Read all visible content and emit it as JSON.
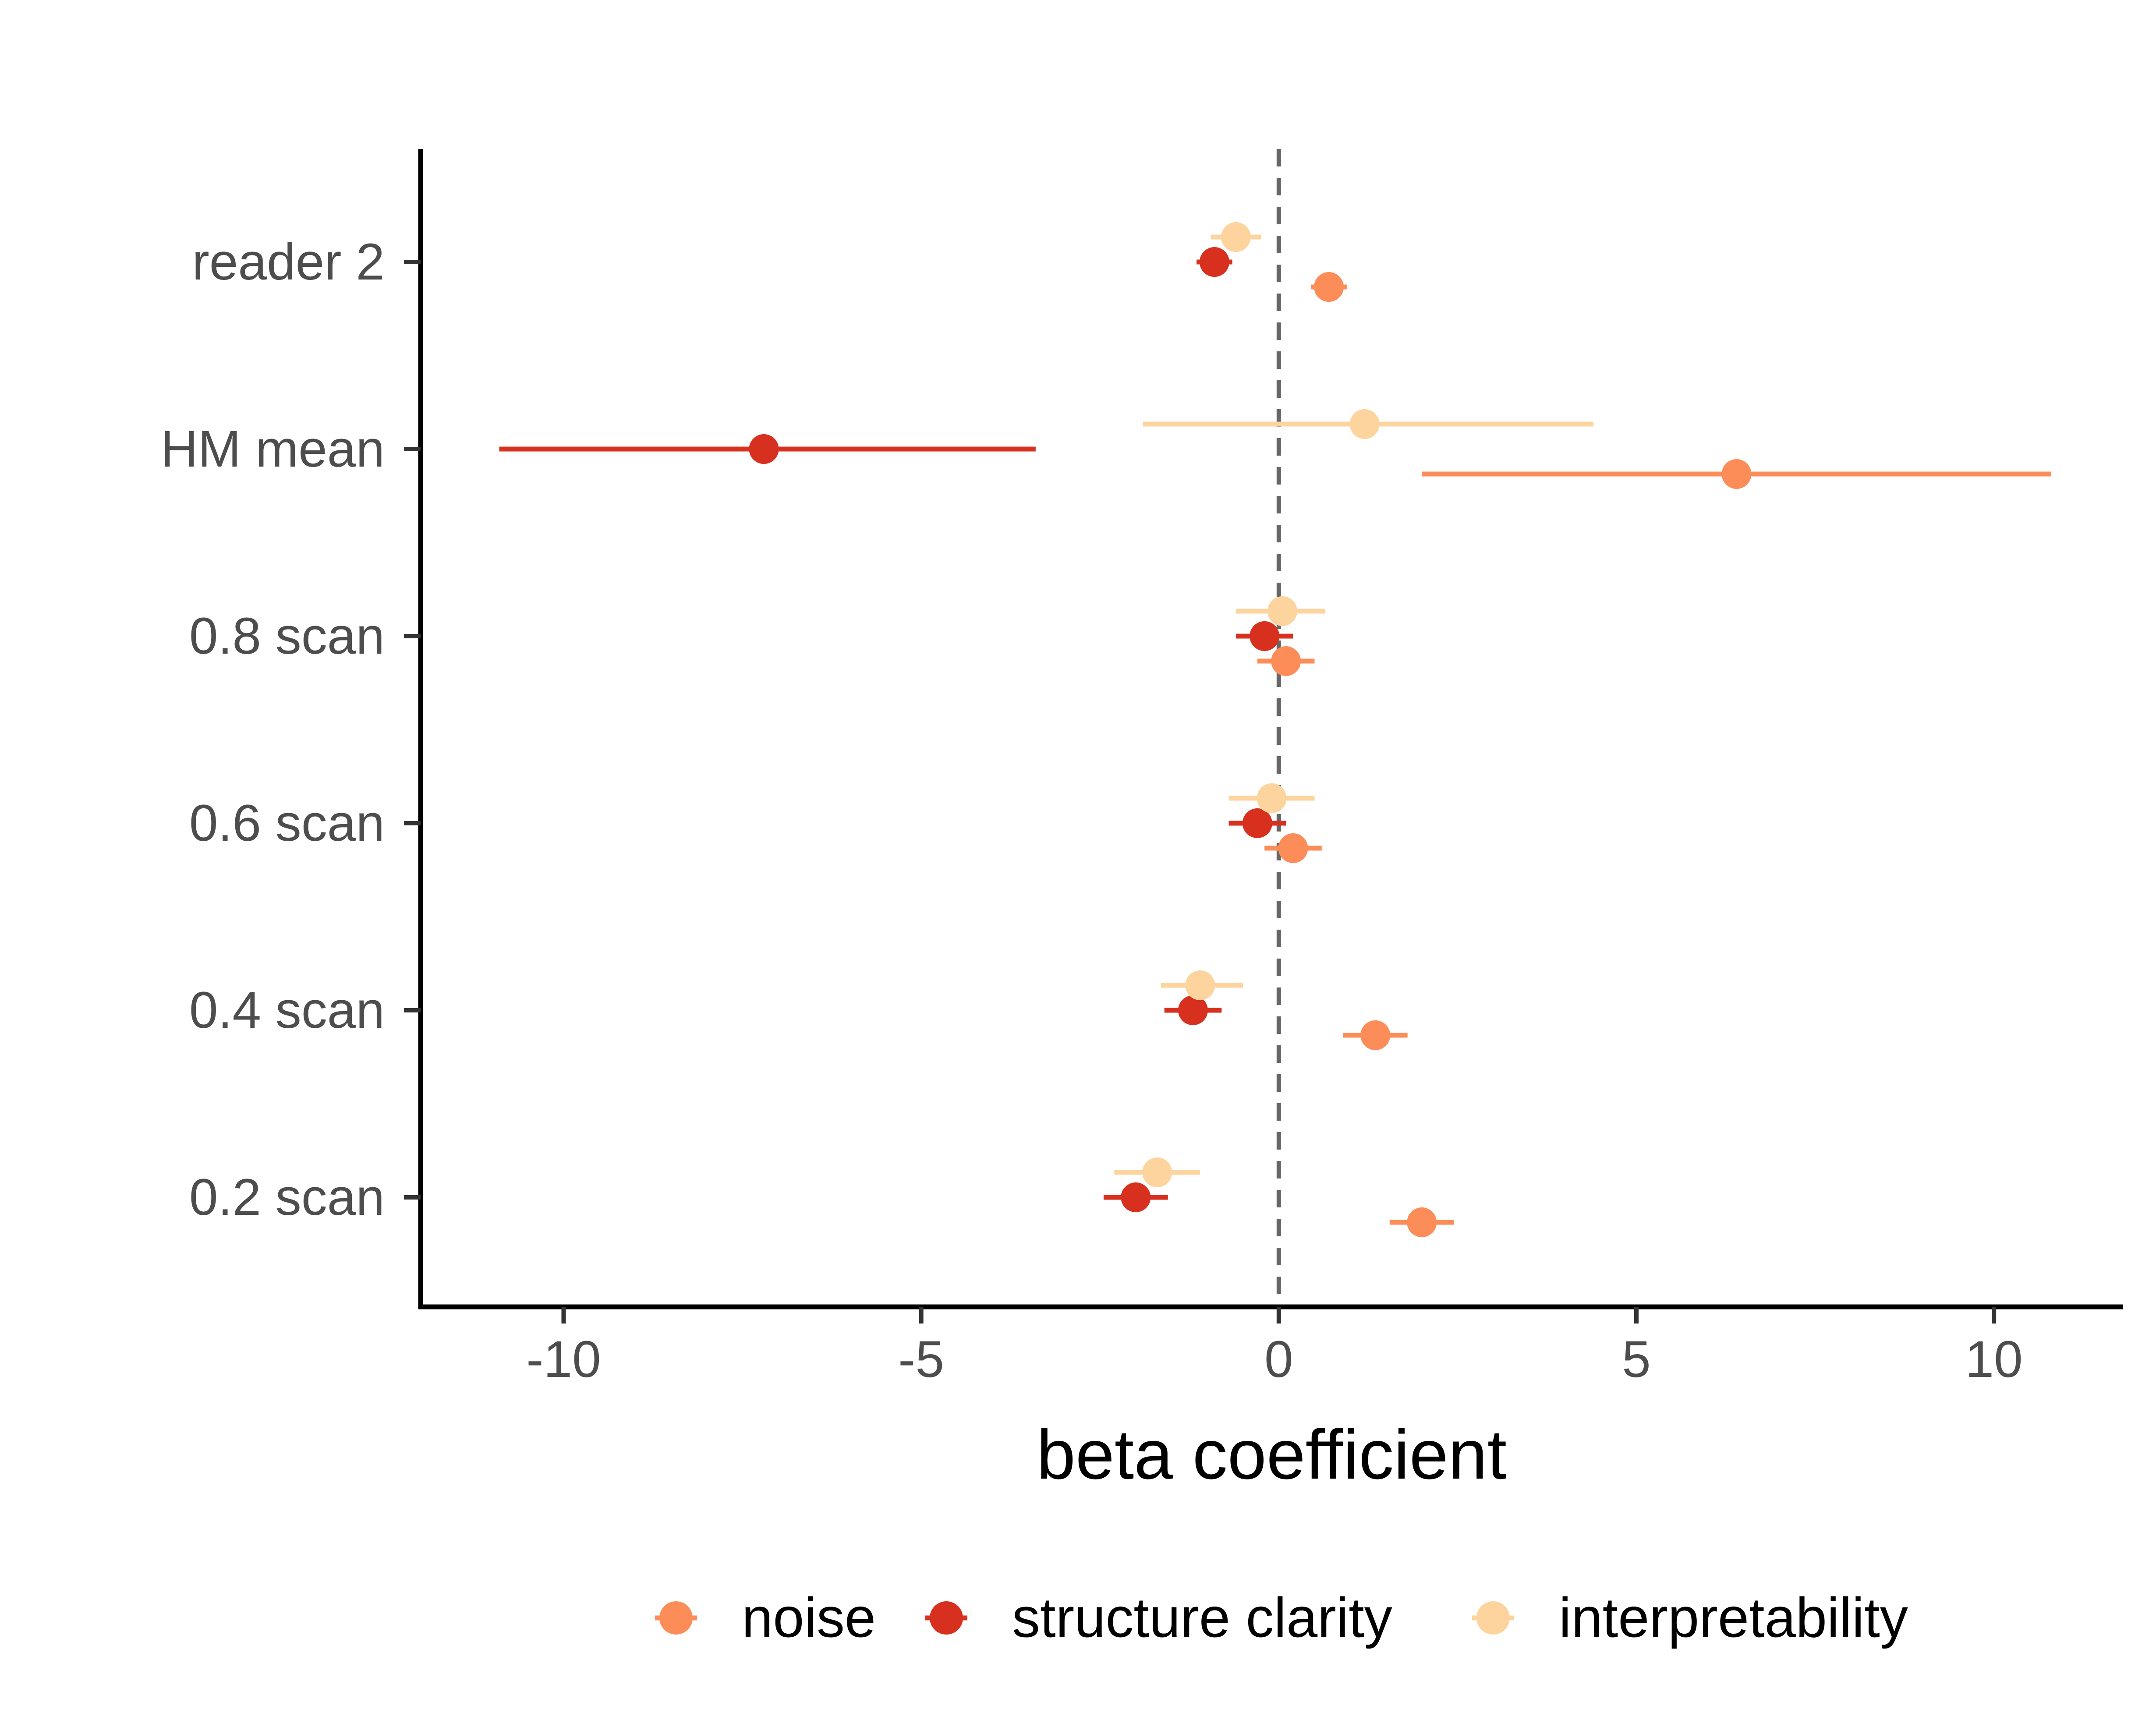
{
  "chart_data": {
    "type": "scatter",
    "subtype": "forest-plot-dodged-pointrange",
    "title": "",
    "xlabel": "beta coefficient",
    "ylabel": "",
    "xlim": [
      -12.0,
      11.8
    ],
    "x_ticks": [
      -10,
      -5,
      0,
      5,
      10
    ],
    "x_tick_labels": [
      "-10",
      "-5",
      "0",
      "5",
      "10"
    ],
    "categories": [
      "reader 2",
      "HM mean",
      "0.8 scan",
      "0.6 scan",
      "0.4 scan",
      "0.2 scan"
    ],
    "reference_line": {
      "x": 0,
      "style": "dashed",
      "color": "#666666"
    },
    "grid": false,
    "legend": {
      "position": "bottom",
      "orientation": "horizontal"
    },
    "series": [
      {
        "name": "noise",
        "color": "#FC8D59",
        "estimates": [
          0.7,
          6.4,
          0.1,
          0.2,
          1.35,
          2.0
        ],
        "ci_low": [
          0.45,
          2.0,
          -0.3,
          -0.2,
          0.9,
          1.55
        ],
        "ci_high": [
          0.95,
          10.8,
          0.5,
          0.6,
          1.8,
          2.45
        ]
      },
      {
        "name": "structure clarity",
        "color": "#D7301F",
        "estimates": [
          -0.9,
          -7.2,
          -0.2,
          -0.3,
          -1.2,
          -2.0
        ],
        "ci_low": [
          -1.15,
          -10.9,
          -0.6,
          -0.7,
          -1.6,
          -2.45
        ],
        "ci_high": [
          -0.65,
          -3.4,
          0.2,
          0.1,
          -0.8,
          -1.55
        ]
      },
      {
        "name": "interpretability",
        "color": "#FDD49E",
        "estimates": [
          -0.6,
          1.2,
          0.05,
          -0.1,
          -1.1,
          -1.7
        ],
        "ci_low": [
          -0.95,
          -1.9,
          -0.6,
          -0.7,
          -1.65,
          -2.3
        ],
        "ci_high": [
          -0.25,
          4.4,
          0.65,
          0.5,
          -0.5,
          -1.1
        ]
      }
    ]
  }
}
